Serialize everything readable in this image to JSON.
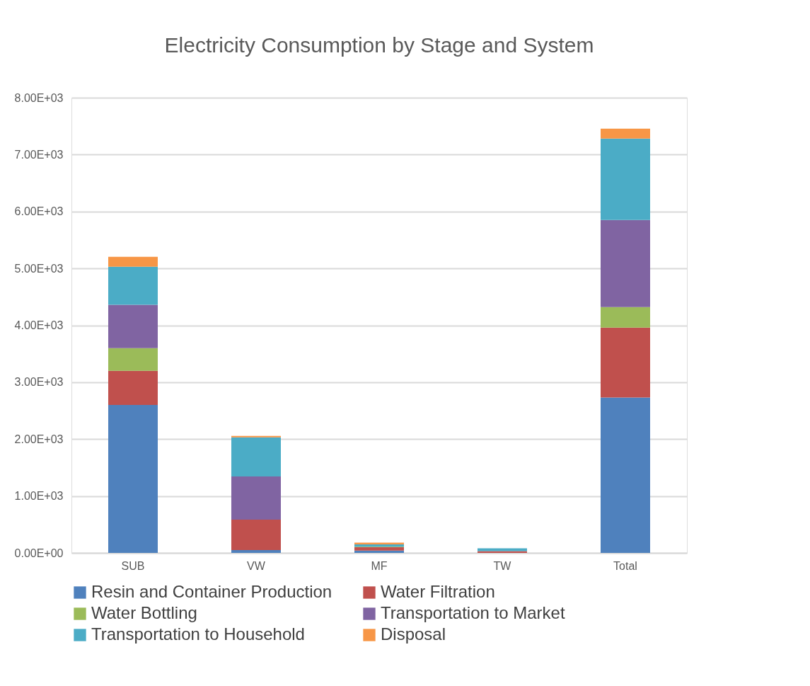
{
  "chart_data": {
    "type": "bar",
    "title": "Electricity Consumption by Stage and System",
    "stacked": true,
    "categories": [
      "SUB",
      "VW",
      "MF",
      "TW",
      "Total"
    ],
    "series": [
      {
        "name": "Resin and Container Production",
        "color": "#4f81bd",
        "values": [
          2600,
          50,
          40,
          0,
          2730
        ]
      },
      {
        "name": "Water Filtration",
        "color": "#c0504d",
        "values": [
          600,
          535,
          60,
          30,
          1230
        ]
      },
      {
        "name": "Water Bottling",
        "color": "#9bbb59",
        "values": [
          400,
          0,
          10,
          0,
          360
        ]
      },
      {
        "name": "Transportation to Market",
        "color": "#8064a2",
        "values": [
          760,
          760,
          0,
          0,
          1530
        ]
      },
      {
        "name": "Transportation to Household",
        "color": "#4bacc6",
        "values": [
          670,
          685,
          40,
          50,
          1430
        ]
      },
      {
        "name": "Disposal",
        "color": "#f79646",
        "values": [
          175,
          25,
          30,
          0,
          175
        ]
      }
    ],
    "ylim": [
      0,
      8000
    ],
    "yticks": [
      {
        "value": 0,
        "label": "0.00E+00"
      },
      {
        "value": 1000,
        "label": "1.00E+03"
      },
      {
        "value": 2000,
        "label": "2.00E+03"
      },
      {
        "value": 3000,
        "label": "3.00E+03"
      },
      {
        "value": 4000,
        "label": "4.00E+03"
      },
      {
        "value": 5000,
        "label": "5.00E+03"
      },
      {
        "value": 6000,
        "label": "6.00E+03"
      },
      {
        "value": 7000,
        "label": "7.00E+03"
      },
      {
        "value": 8000,
        "label": "8.00E+03"
      }
    ],
    "grid": "y",
    "legend": "bottom"
  }
}
